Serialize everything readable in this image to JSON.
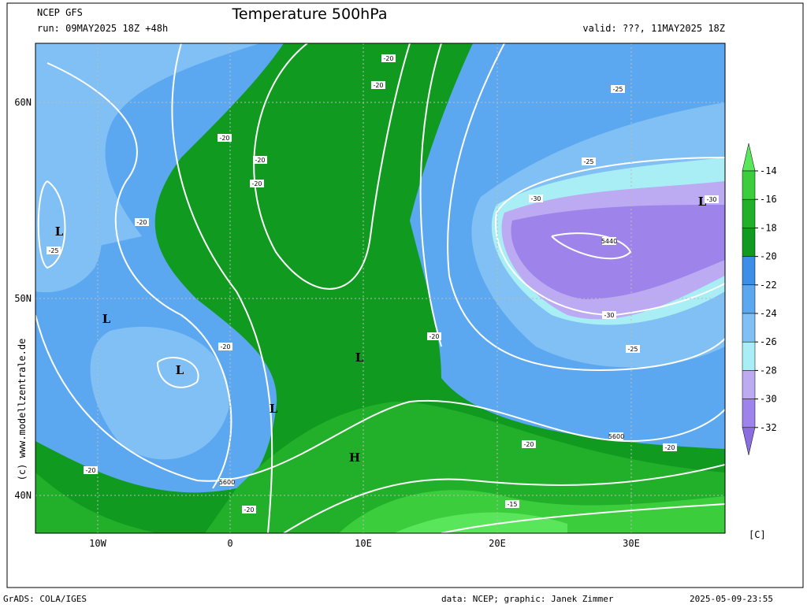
{
  "header": {
    "model": "NCEP GFS",
    "run": "run: 09MAY2025 18Z +48h",
    "title": "Temperature 500hPa",
    "valid": "valid: ???, 11MAY2025 18Z"
  },
  "axes": {
    "x_labels": [
      "10W",
      "0",
      "10E",
      "20E",
      "30E"
    ],
    "y_labels": [
      "60N",
      "50N",
      "40N"
    ]
  },
  "colorbar": {
    "ticks": [
      -14,
      -16,
      -18,
      -20,
      -22,
      -24,
      -26,
      -28,
      -30,
      -32
    ],
    "unit": "[C]",
    "colors": [
      "#5ae65a",
      "#3ccd3c",
      "#22b02a",
      "#109a20",
      "#3c8ee6",
      "#5ca8f0",
      "#80c0f5",
      "#a8eef4",
      "#bcaaf2",
      "#9e84ea",
      "#8a6ee0"
    ]
  },
  "watermark": "(c) www.modellzentrale.de",
  "contour_labels": [
    "-20",
    "-20",
    "-20",
    "-20",
    "-20",
    "-20",
    "-25",
    "-20",
    "-20",
    "-20",
    "5600",
    "-20",
    "-15",
    "-20",
    "5600",
    "-20",
    "-25",
    "-25",
    "-30",
    "5440",
    "-30",
    "-25",
    "-30"
  ],
  "pressure_centers": [
    "L",
    "L",
    "L",
    "L",
    "L",
    "L",
    "H"
  ],
  "footer": {
    "software": "GrADS: COLA/IGES",
    "credits": "data: NCEP; graphic: Janek Zimmer",
    "timestamp": "2025-05-09-23:55"
  }
}
